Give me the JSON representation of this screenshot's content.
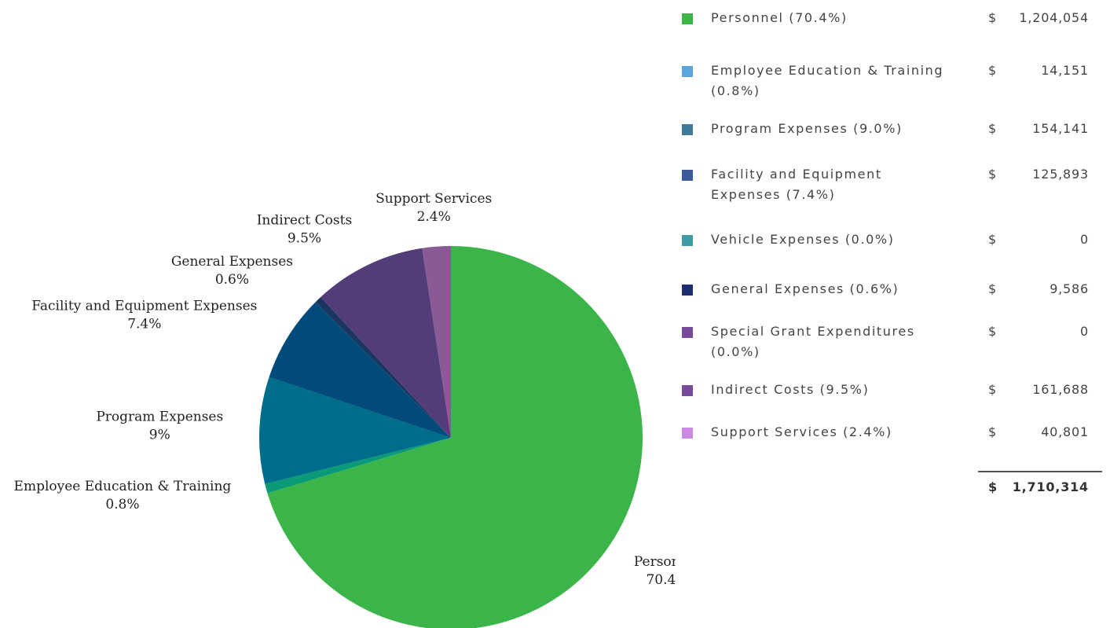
{
  "chart_data": {
    "type": "pie",
    "categories": [
      "Personnel",
      "Employee Education & Training",
      "Program Expenses",
      "Facility and Equipment Expenses",
      "General Expenses",
      "Indirect Costs",
      "Support Services"
    ],
    "values": [
      70.4,
      0.8,
      9,
      7.4,
      0.6,
      9.5,
      2.4
    ],
    "value_labels": [
      "70.4%",
      "0.8%",
      "9%",
      "7.4%",
      "0.6%",
      "9.5%",
      "2.4%"
    ],
    "colors": [
      "#3bb54a",
      "#0a9a78",
      "#006e8a",
      "#004a7c",
      "#1c3560",
      "#523d78",
      "#8a5a96"
    ]
  },
  "table": {
    "currency": "$",
    "rows": [
      {
        "label": "Personnel (70.4%)",
        "amount": "1,204,054",
        "color": "#3bb54a"
      },
      {
        "label": "Employee Education & Training (0.8%)",
        "amount": "14,151",
        "color": "#5aa6d8"
      },
      {
        "label": "Program Expenses (9.0%)",
        "amount": "154,141",
        "color": "#3f7a99"
      },
      {
        "label": "Facility and Equipment Expenses (7.4%)",
        "amount": "125,893",
        "color": "#3c5a99"
      },
      {
        "label": "Vehicle Expenses (0.0%)",
        "amount": "0",
        "color": "#3f9aa6"
      },
      {
        "label": "General Expenses (0.6%)",
        "amount": "9,586",
        "color": "#1f2f6b"
      },
      {
        "label": "Special Grant Expenditures (0.0%)",
        "amount": "0",
        "color": "#7a4a9a"
      },
      {
        "label": "Indirect Costs (9.5%)",
        "amount": "161,688",
        "color": "#7a4a9a"
      },
      {
        "label": "Support Services (2.4%)",
        "amount": "40,801",
        "color": "#c98ae0"
      }
    ],
    "total": "1,710,314"
  }
}
